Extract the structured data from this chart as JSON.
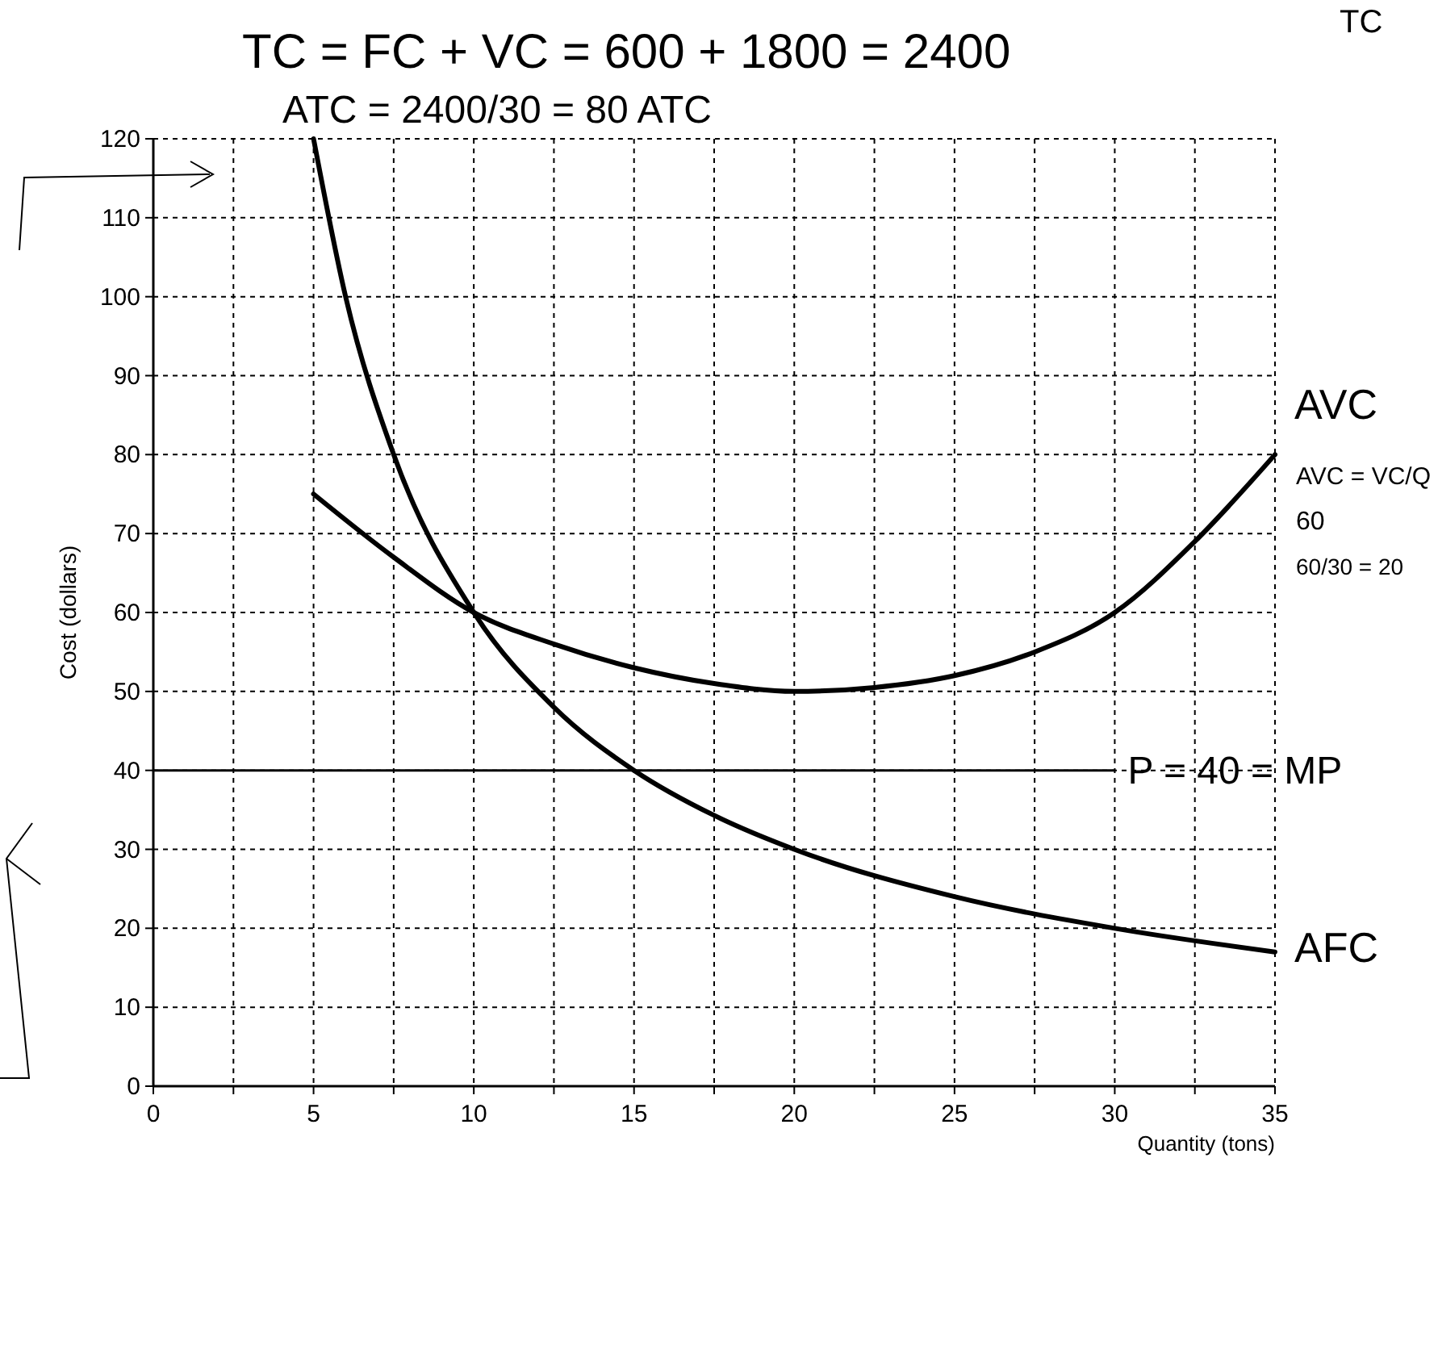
{
  "chart_data": {
    "type": "line",
    "xlabel": "Quantity (tons)",
    "ylabel": "Cost (dollars)",
    "xlim": [
      0,
      35
    ],
    "xticks": [
      0,
      {
        "value": 2.5,
        "label": null
      },
      5,
      {
        "value": 7.5,
        "label": null
      },
      10,
      {
        "value": 12.5,
        "label": null
      },
      15,
      {
        "value": 17.5,
        "label": null
      },
      20,
      {
        "value": 22.5,
        "label": null
      },
      25,
      {
        "value": 27.5,
        "label": null
      },
      30,
      {
        "value": 32.5,
        "label": null
      },
      35
    ],
    "ylim": [
      0,
      120
    ],
    "yticks": [
      0,
      10,
      20,
      30,
      40,
      50,
      60,
      70,
      80,
      90,
      100,
      110,
      120
    ],
    "grid": true,
    "line_style": "solid",
    "marker": "none",
    "series": [
      {
        "name": "AVC",
        "color": "#000000",
        "x": [
          5,
          7.5,
          10,
          12.5,
          15,
          17.5,
          20,
          22.5,
          25,
          27.5,
          30,
          32.5,
          35
        ],
        "values": [
          75,
          67,
          60,
          56,
          53,
          51,
          50,
          50.5,
          52,
          55,
          60,
          69,
          80
        ]
      },
      {
        "name": "AFC",
        "color": "#000000",
        "x": [
          5,
          6,
          7.5,
          10,
          12.5,
          15,
          17.5,
          20,
          25,
          30,
          35
        ],
        "values": [
          120,
          100,
          80,
          60,
          48,
          40,
          34.3,
          30,
          24,
          20,
          17
        ]
      },
      {
        "color": "#000000",
        "x": [
          0,
          30
        ],
        "values": [
          40,
          40
        ]
      }
    ],
    "annotations": [
      "TC = FC + VC = 600 + 1800 = 2400",
      "TC",
      "ATC = 2400/30 = 80 ATC",
      "AVC = VC/Q",
      "60",
      "60/30 = 20",
      {
        "text": "P = 40 = MP",
        "x": 30,
        "y": 40
      }
    ]
  }
}
